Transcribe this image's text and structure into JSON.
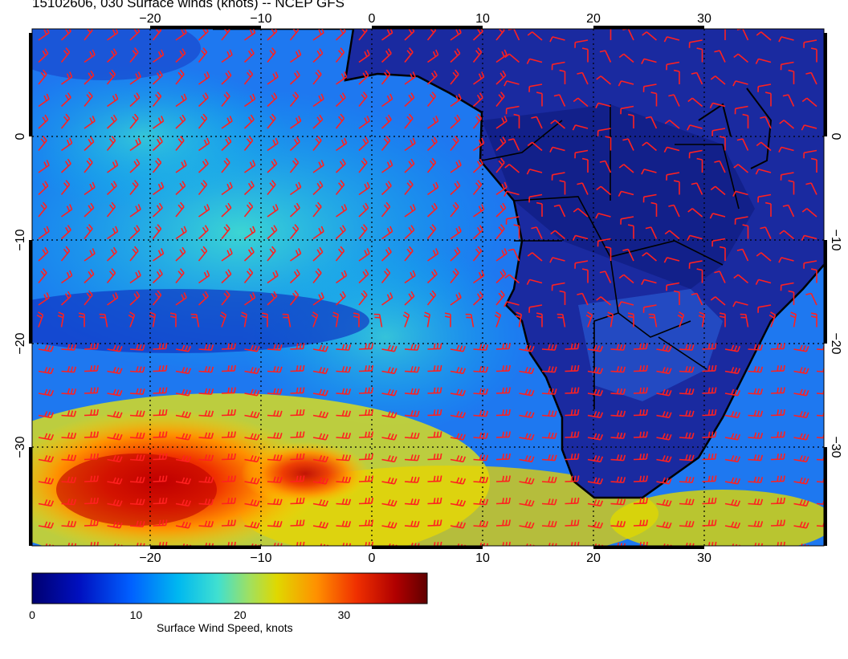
{
  "title": "15102606, 030 Surface winds (knots) -- NCEP GFS",
  "map": {
    "lon_range": [
      -30,
      40
    ],
    "lat_range": [
      -40,
      9
    ],
    "lon_ticks": [
      "-20",
      "-10",
      "0",
      "10",
      "20",
      "30"
    ],
    "lat_ticks": [
      "0",
      "-10",
      "-20",
      "-30"
    ],
    "graticule": "dotted",
    "land_color": "#1a2aa0",
    "coastline_color": "#000000",
    "barb_color": "#ff2020"
  },
  "colorbar": {
    "label": "Surface Wind Speed, knots",
    "ticks": [
      "0",
      "10",
      "20",
      "30"
    ],
    "range": [
      0,
      38
    ],
    "colors": [
      "#000080",
      "#0020d0",
      "#0070ff",
      "#00c0e0",
      "#40e0c0",
      "#c8e020",
      "#ffd000",
      "#ff8000",
      "#e02000",
      "#800000"
    ]
  }
}
